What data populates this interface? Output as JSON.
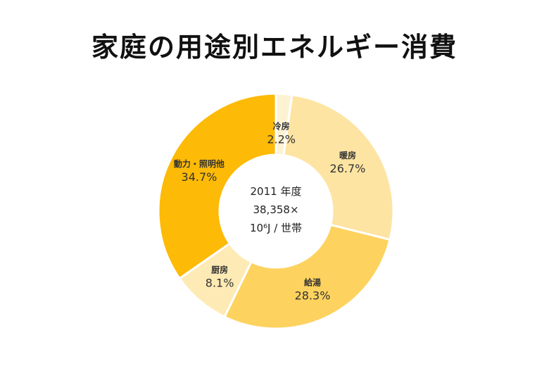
{
  "title": "家庭の用途別エネルギー消費",
  "chart_data": {
    "type": "pie",
    "style": "donut",
    "categories": [
      "冷房",
      "暖房",
      "給湯",
      "厨房",
      "動力・照明他"
    ],
    "values": [
      2.2,
      26.7,
      28.3,
      8.1,
      34.7
    ],
    "value_labels": [
      "2.2%",
      "26.7%",
      "28.3%",
      "8.1%",
      "34.7%"
    ],
    "colors": [
      "#FDF3D4",
      "#FEE4A2",
      "#FDD25E",
      "#FEEAB4",
      "#FDBA06"
    ],
    "center_label": {
      "line1": "2011 年度",
      "line2": "38,358×",
      "line3": "10⁶J / 世帯"
    }
  }
}
